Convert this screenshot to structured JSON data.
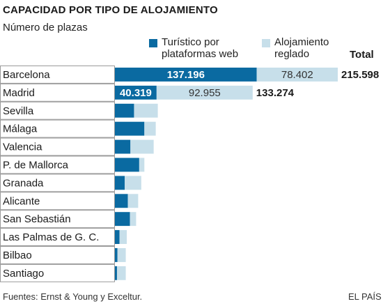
{
  "header": {
    "title": "CAPACIDAD POR TIPO DE ALOJAMIENTO",
    "subtitle": "Número de plazas"
  },
  "legend": {
    "web_line1": "Turístico por",
    "web_line2": "plataformas web",
    "reg_line1": "Alojamiento",
    "reg_line2": "reglado",
    "total": "Total"
  },
  "footer": {
    "source": "Fuentes: Ernst & Young y Exceltur.",
    "brand": "EL PAÍS"
  },
  "colors": {
    "web": "#0a6aa1",
    "reglado": "#c7dfea",
    "label_fill": "#ffffff",
    "label_border": "#9a9a9a"
  },
  "chart_data": {
    "type": "bar",
    "orientation": "horizontal",
    "stacked": true,
    "categories": [
      "Barcelona",
      "Madrid",
      "Sevilla",
      "Málaga",
      "Valencia",
      "P. de Mallorca",
      "Granada",
      "Alicante",
      "San Sebastián",
      "Las Palmas de G. C.",
      "Bilbao",
      "Santiago"
    ],
    "series": [
      {
        "name": "Turístico por plataformas web",
        "values": [
          137196,
          40319,
          18500,
          28500,
          15000,
          23500,
          9500,
          12500,
          14500,
          4500,
          2500,
          2000
        ]
      },
      {
        "name": "Alojamiento reglado",
        "values": [
          78402,
          92955,
          23000,
          11000,
          22500,
          5000,
          16000,
          10000,
          6000,
          7000,
          8000,
          8500
        ]
      }
    ],
    "totals": [
      215598,
      133274,
      null,
      null,
      null,
      null,
      null,
      null,
      null,
      null,
      null,
      null
    ],
    "value_labels": {
      "web": [
        "137.196",
        "40.319"
      ],
      "reglado": [
        "78.402",
        "92.955"
      ],
      "total": [
        "215.598",
        "133.274"
      ]
    },
    "xlim": [
      0,
      215598
    ],
    "grid": false,
    "legend_position": "top"
  }
}
